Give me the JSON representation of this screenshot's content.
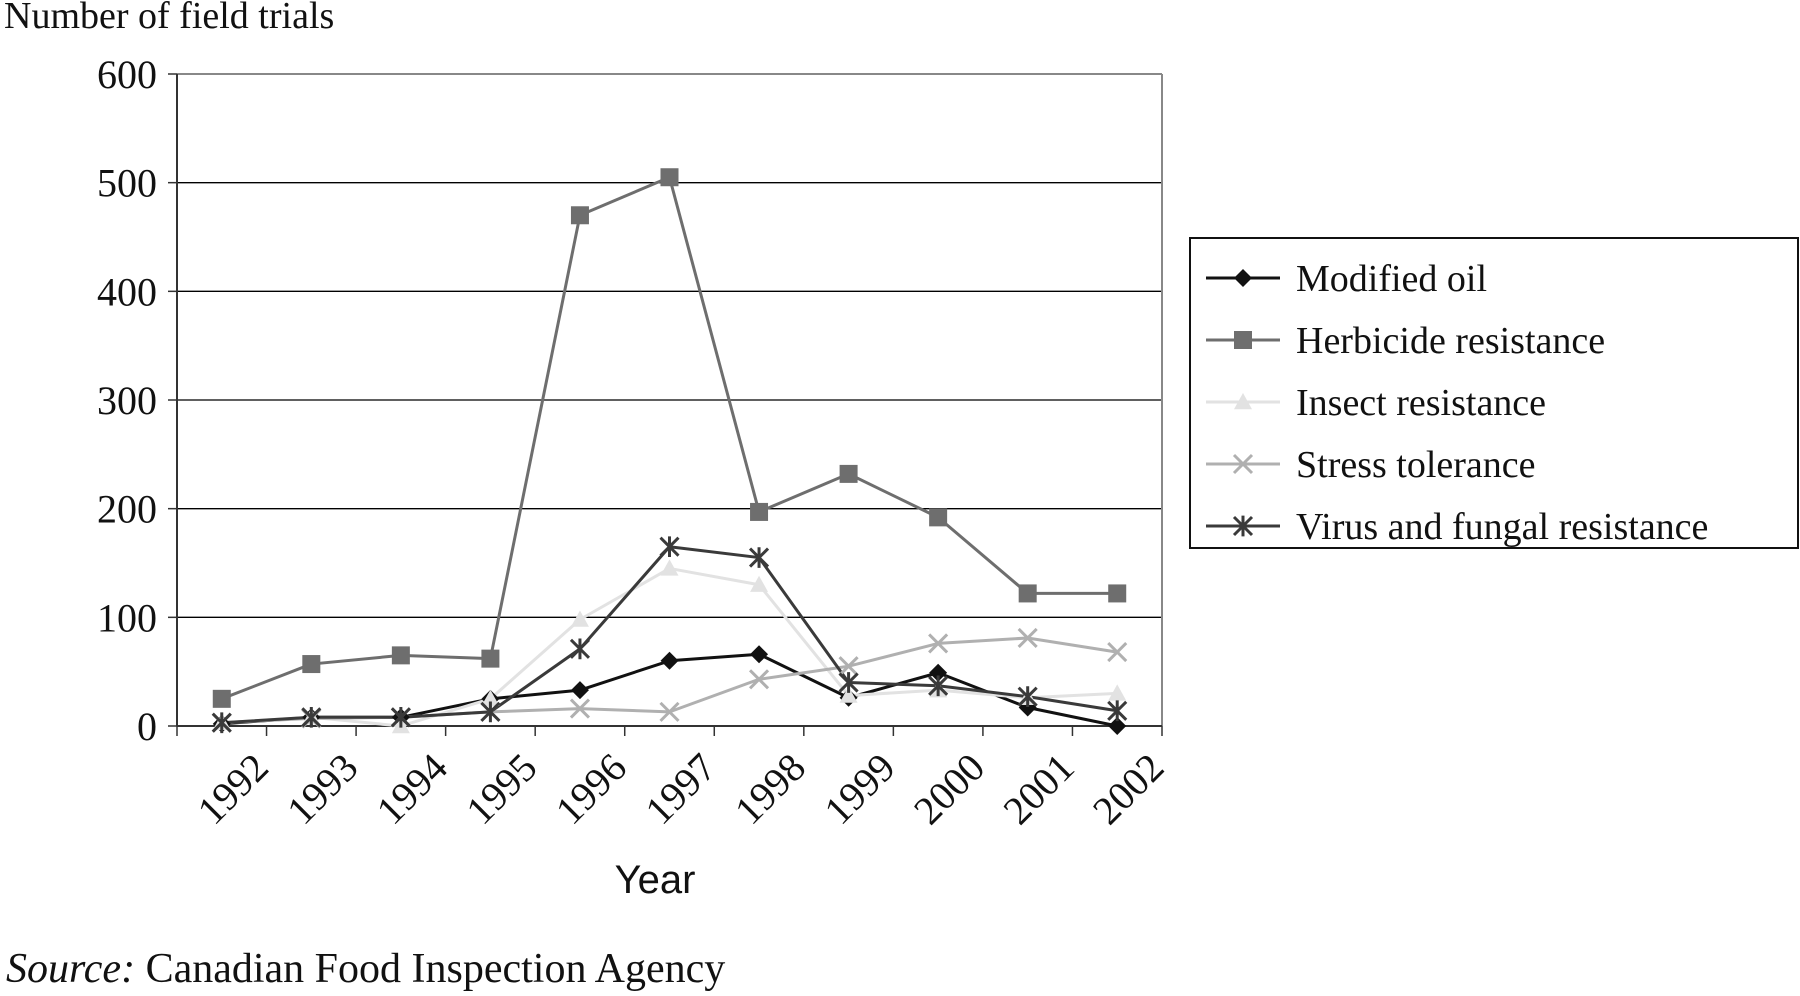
{
  "chart_data": {
    "type": "line",
    "ylabel": "Number of field trials",
    "xlabel": "Year",
    "ylim": [
      0,
      600
    ],
    "yticks": [
      "0",
      "100",
      "200",
      "300",
      "400",
      "500",
      "600"
    ],
    "categories": [
      "1992",
      "1993",
      "1994",
      "1995",
      "1996",
      "1997",
      "1998",
      "1999",
      "2000",
      "2001",
      "2002"
    ],
    "grid": true,
    "legend_position": "right",
    "series": [
      {
        "name": "Modified oil",
        "color": "#111111",
        "marker": "diamond",
        "values": [
          2,
          8,
          8,
          25,
          33,
          60,
          66,
          26,
          49,
          17,
          0
        ]
      },
      {
        "name": "Herbicide resistance",
        "color": "#6e6e6e",
        "marker": "square",
        "values": [
          25,
          57,
          65,
          62,
          470,
          505,
          197,
          232,
          192,
          122,
          122
        ]
      },
      {
        "name": "Insect resistance",
        "color": "#e2e2e2",
        "marker": "triangle",
        "values": [
          3,
          8,
          0,
          25,
          98,
          145,
          130,
          28,
          33,
          26,
          30
        ]
      },
      {
        "name": "Stress tolerance",
        "color": "#b0b0b0",
        "marker": "x",
        "values": [
          3,
          7,
          8,
          13,
          16,
          13,
          43,
          55,
          76,
          81,
          68
        ]
      },
      {
        "name": "Virus and fungal resistance",
        "color": "#3a3a3a",
        "marker": "star",
        "values": [
          3,
          8,
          8,
          13,
          71,
          165,
          155,
          40,
          37,
          27,
          14
        ]
      }
    ]
  },
  "source": {
    "prefix": "Source:",
    "text": "Canadian Food Inspection Agency"
  }
}
